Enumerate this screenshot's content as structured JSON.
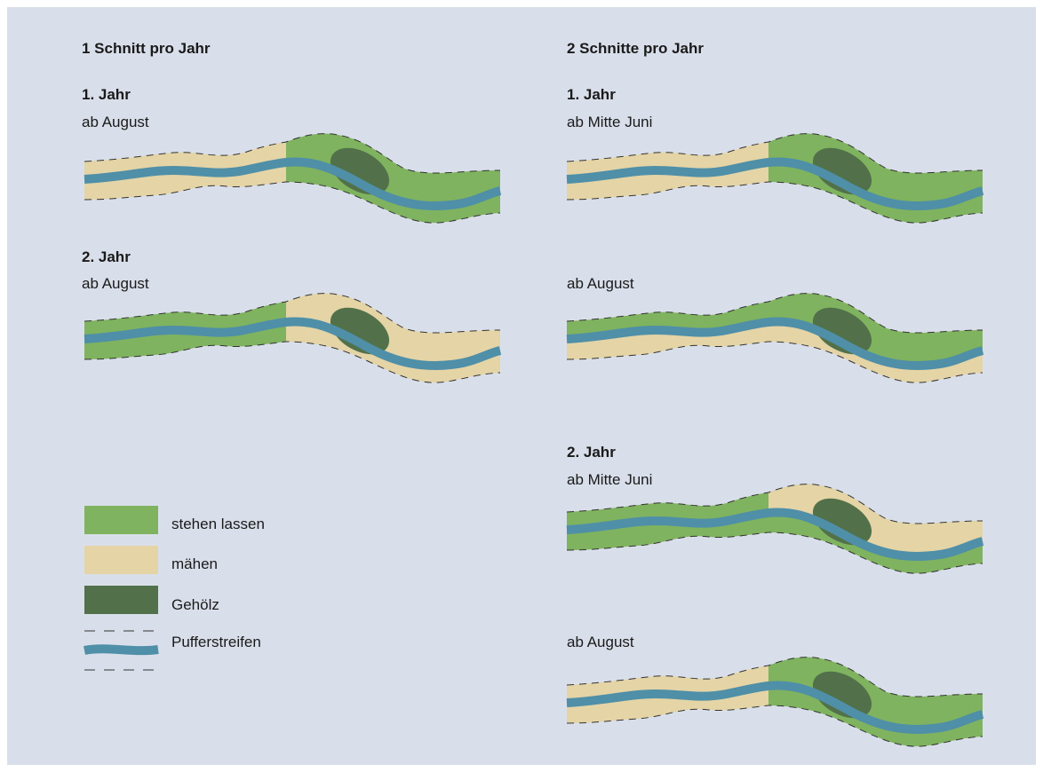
{
  "left": {
    "title": "1 Schnitt pro Jahr",
    "sections": [
      {
        "year": "1. Jahr",
        "period": "ab August"
      },
      {
        "year": "2. Jahr",
        "period": "ab August"
      }
    ]
  },
  "right": {
    "title": "2 Schnitte pro Jahr",
    "sections": [
      {
        "year": "1. Jahr",
        "period": "ab Mitte Juni"
      },
      {
        "period": "ab August"
      },
      {
        "year": "2. Jahr",
        "period": "ab Mitte Juni"
      },
      {
        "period": "ab August"
      }
    ]
  },
  "legend": [
    "stehen lassen",
    "mähen",
    "Gehölz",
    "Pufferstreifen"
  ]
}
